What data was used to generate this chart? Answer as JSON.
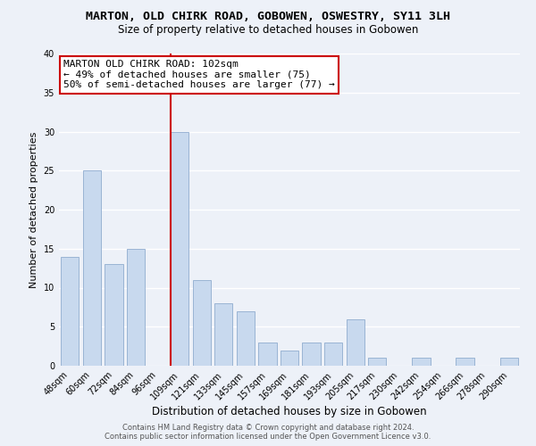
{
  "title": "MARTON, OLD CHIRK ROAD, GOBOWEN, OSWESTRY, SY11 3LH",
  "subtitle": "Size of property relative to detached houses in Gobowen",
  "xlabel": "Distribution of detached houses by size in Gobowen",
  "ylabel": "Number of detached properties",
  "bar_labels": [
    "48sqm",
    "60sqm",
    "72sqm",
    "84sqm",
    "96sqm",
    "109sqm",
    "121sqm",
    "133sqm",
    "145sqm",
    "157sqm",
    "169sqm",
    "181sqm",
    "193sqm",
    "205sqm",
    "217sqm",
    "230sqm",
    "242sqm",
    "254sqm",
    "266sqm",
    "278sqm",
    "290sqm"
  ],
  "bar_values": [
    14,
    25,
    13,
    15,
    0,
    30,
    11,
    8,
    7,
    3,
    2,
    3,
    3,
    6,
    1,
    0,
    1,
    0,
    1,
    0,
    1
  ],
  "bar_color": "#c8d9ee",
  "bar_edge_color": "#9ab4d4",
  "vline_color": "#cc0000",
  "ylim": [
    0,
    40
  ],
  "yticks": [
    0,
    5,
    10,
    15,
    20,
    25,
    30,
    35,
    40
  ],
  "annotation_title": "MARTON OLD CHIRK ROAD: 102sqm",
  "annotation_line1": "← 49% of detached houses are smaller (75)",
  "annotation_line2": "50% of semi-detached houses are larger (77) →",
  "annotation_box_color": "#ffffff",
  "annotation_box_edge": "#cc0000",
  "footer_line1": "Contains HM Land Registry data © Crown copyright and database right 2024.",
  "footer_line2": "Contains public sector information licensed under the Open Government Licence v3.0.",
  "background_color": "#edf1f8",
  "grid_color": "#ffffff",
  "title_fontsize": 9.5,
  "subtitle_fontsize": 8.5,
  "annotation_fontsize": 8.0,
  "ylabel_fontsize": 8.0,
  "xlabel_fontsize": 8.5,
  "tick_fontsize": 7.0,
  "footer_fontsize": 6.0
}
